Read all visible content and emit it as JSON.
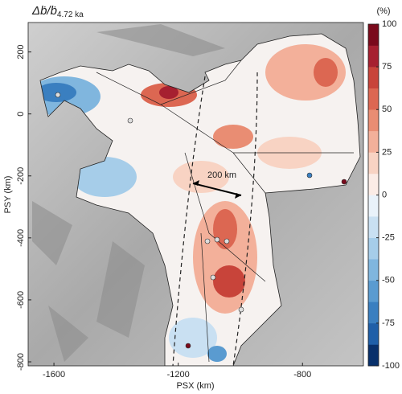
{
  "chart_data": {
    "type": "map",
    "title_main": "Δḃ/ḃ",
    "title_sub": "4.72 ka",
    "xlabel": "PSX (km)",
    "ylabel": "PSY (km)",
    "xlim": [
      -1683,
      -604
    ],
    "ylim": [
      -813,
      295
    ],
    "xticks": [
      -1600,
      -1200,
      -800
    ],
    "yticks": [
      -800,
      -600,
      -400,
      -200,
      0,
      200
    ],
    "annotation": "200 km",
    "colorbar": {
      "label": "(%)",
      "lim": [
        -100,
        100
      ],
      "ticks": [
        -100,
        -75,
        -50,
        -25,
        0,
        25,
        50,
        75,
        100
      ],
      "colors": [
        "#08306b",
        "#1f5fa8",
        "#3a7fc0",
        "#5a9bd0",
        "#80b6de",
        "#a6cde9",
        "#c9e0f2",
        "#e9f2fa",
        "#fbece6",
        "#f8d3c3",
        "#f3b09a",
        "#e98d73",
        "#dc6752",
        "#c8443a",
        "#a62030",
        "#7a0a1c"
      ]
    }
  }
}
